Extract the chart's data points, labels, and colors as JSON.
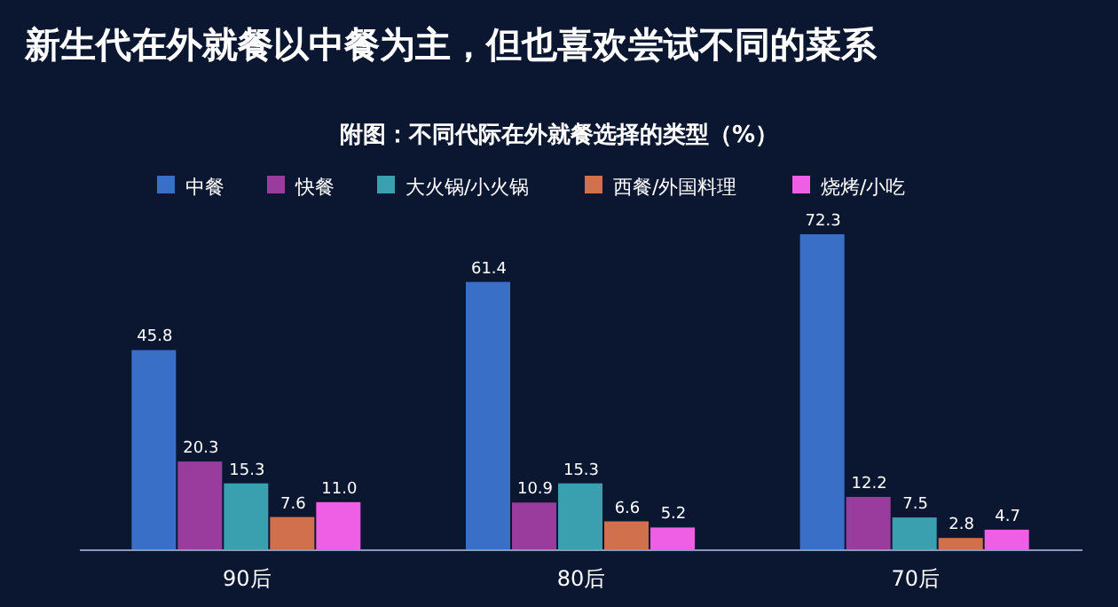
{
  "chart_data": {
    "type": "bar",
    "title": "新生代在外就餐以中餐为主，但也喜欢尝试不同的菜系",
    "subtitle": "附图：不同代际在外就餐选择的类型（%）",
    "categories": [
      "90后",
      "80后",
      "70后"
    ],
    "series": [
      {
        "name": "中餐",
        "color": "#3a6fc8",
        "values": [
          45.8,
          61.4,
          72.3
        ]
      },
      {
        "name": "快餐",
        "color": "#9a3c9e",
        "values": [
          20.3,
          10.9,
          12.2
        ]
      },
      {
        "name": "大火锅/小火锅",
        "color": "#3a9fae",
        "values": [
          15.3,
          15.3,
          7.5
        ]
      },
      {
        "name": "西餐/外国料理",
        "color": "#d0704c",
        "values": [
          7.6,
          6.6,
          2.8
        ]
      },
      {
        "name": "烧烤/小吃",
        "color": "#ee5fe6",
        "values": [
          11.0,
          5.2,
          4.7
        ],
        "value_labels": [
          "11.0",
          "5.2",
          "4.7"
        ]
      }
    ],
    "data_labels": true,
    "legend": "top"
  }
}
